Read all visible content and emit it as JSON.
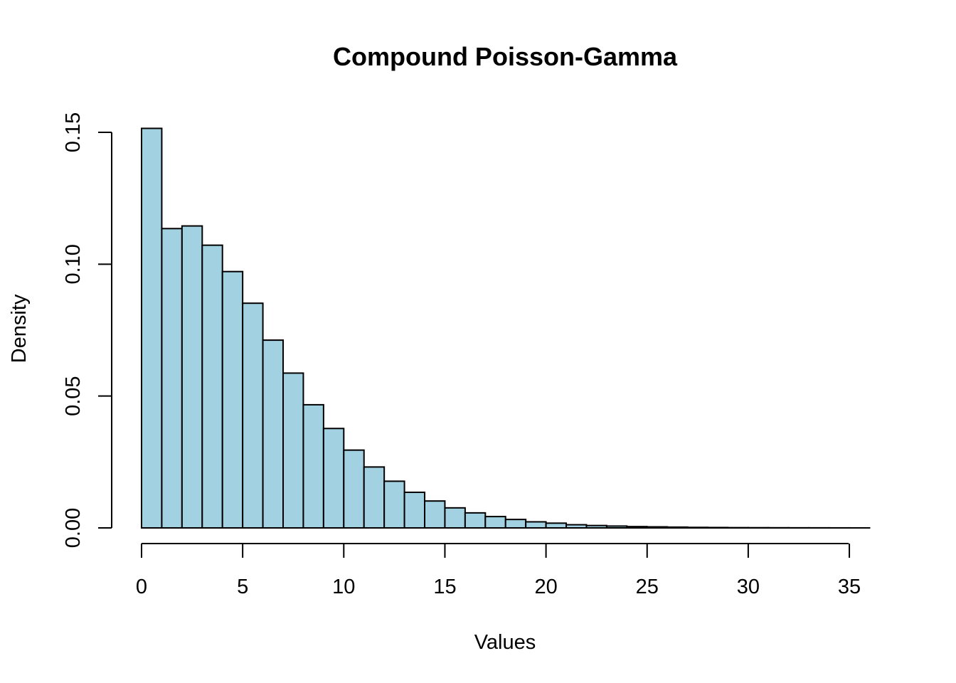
{
  "chart_data": {
    "type": "bar",
    "title": "Compound Poisson-Gamma",
    "xlabel": "Values",
    "ylabel": "Density",
    "bar_color": "#a2d1e2",
    "edge_color": "#000000",
    "bin_width": 1,
    "xlim": [
      0,
      35
    ],
    "ylim": [
      0,
      0.15
    ],
    "x_ticks": [
      "0",
      "5",
      "10",
      "15",
      "20",
      "25",
      "30",
      "35"
    ],
    "y_ticks": [
      "0.00",
      "0.05",
      "0.10",
      "0.15"
    ],
    "grid": false,
    "bins": [
      {
        "x0": 0,
        "x1": 1,
        "value": 0.1515
      },
      {
        "x0": 1,
        "x1": 2,
        "value": 0.1135
      },
      {
        "x0": 2,
        "x1": 3,
        "value": 0.1145
      },
      {
        "x0": 3,
        "x1": 4,
        "value": 0.1072
      },
      {
        "x0": 4,
        "x1": 5,
        "value": 0.0972
      },
      {
        "x0": 5,
        "x1": 6,
        "value": 0.0852
      },
      {
        "x0": 6,
        "x1": 7,
        "value": 0.0712
      },
      {
        "x0": 7,
        "x1": 8,
        "value": 0.0587
      },
      {
        "x0": 8,
        "x1": 9,
        "value": 0.0467
      },
      {
        "x0": 9,
        "x1": 10,
        "value": 0.0377
      },
      {
        "x0": 10,
        "x1": 11,
        "value": 0.0295
      },
      {
        "x0": 11,
        "x1": 12,
        "value": 0.0231
      },
      {
        "x0": 12,
        "x1": 13,
        "value": 0.0177
      },
      {
        "x0": 13,
        "x1": 14,
        "value": 0.0135
      },
      {
        "x0": 14,
        "x1": 15,
        "value": 0.0102
      },
      {
        "x0": 15,
        "x1": 16,
        "value": 0.0076
      },
      {
        "x0": 16,
        "x1": 17,
        "value": 0.0057
      },
      {
        "x0": 17,
        "x1": 18,
        "value": 0.0043
      },
      {
        "x0": 18,
        "x1": 19,
        "value": 0.0032
      },
      {
        "x0": 19,
        "x1": 20,
        "value": 0.0023
      },
      {
        "x0": 20,
        "x1": 21,
        "value": 0.0018
      },
      {
        "x0": 21,
        "x1": 22,
        "value": 0.0012
      },
      {
        "x0": 22,
        "x1": 23,
        "value": 0.0009
      },
      {
        "x0": 23,
        "x1": 24,
        "value": 0.0007
      },
      {
        "x0": 24,
        "x1": 25,
        "value": 0.0005
      },
      {
        "x0": 25,
        "x1": 26,
        "value": 0.0004
      },
      {
        "x0": 26,
        "x1": 27,
        "value": 0.0003
      },
      {
        "x0": 27,
        "x1": 28,
        "value": 0.0002
      },
      {
        "x0": 28,
        "x1": 29,
        "value": 0.00015
      },
      {
        "x0": 29,
        "x1": 30,
        "value": 0.0001
      },
      {
        "x0": 30,
        "x1": 31,
        "value": 8e-05
      },
      {
        "x0": 31,
        "x1": 32,
        "value": 6e-05
      },
      {
        "x0": 32,
        "x1": 33,
        "value": 4e-05
      },
      {
        "x0": 33,
        "x1": 34,
        "value": 3e-05
      },
      {
        "x0": 34,
        "x1": 35,
        "value": 2e-05
      },
      {
        "x0": 35,
        "x1": 36,
        "value": 1e-05
      }
    ]
  }
}
